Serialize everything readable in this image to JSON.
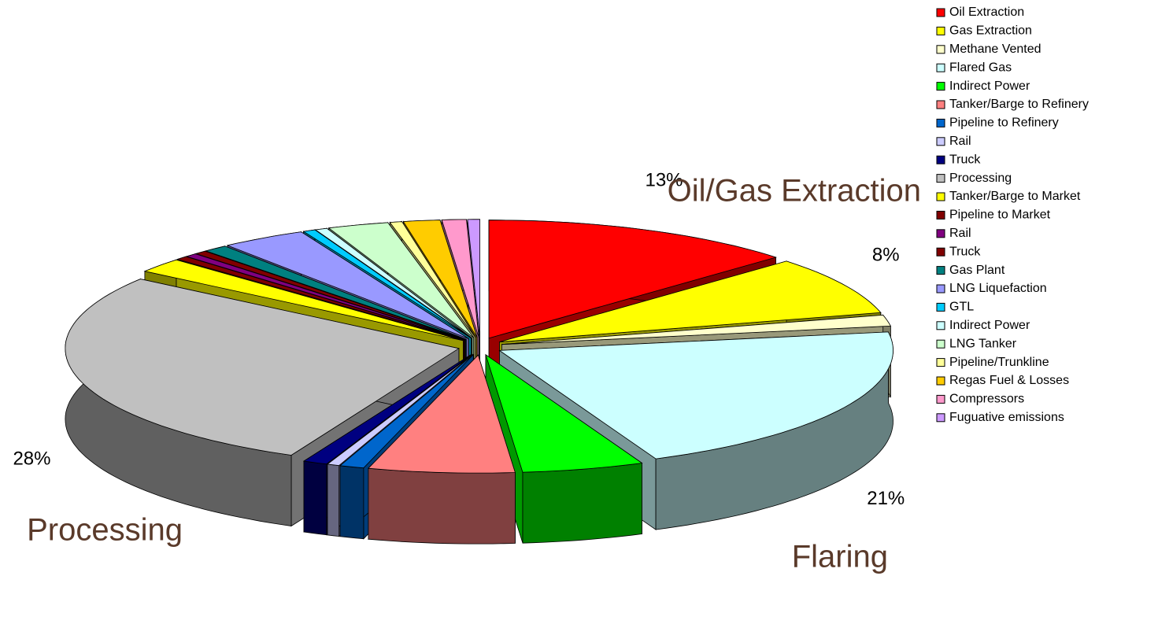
{
  "chart_data": {
    "type": "pie",
    "categories": [
      "Oil Extraction",
      "Gas Extraction",
      "Methane Vented",
      "Flared Gas",
      "Indirect Power",
      "Tanker/Barge to Refinery",
      "Pipeline to Refinery",
      "Rail",
      "Truck",
      "Processing",
      "Tanker/Barge to Market",
      "Pipeline to Market",
      "Rail",
      "Truck",
      "Gas Plant",
      "LNG Liquefaction",
      "GTL",
      "Indirect Power",
      "LNG Tanker",
      "Pipeline/Trunkline",
      "Regas Fuel & Losses",
      "Compressors",
      "Fuguative emissions"
    ],
    "values": [
      13,
      8,
      1.5,
      21,
      5,
      6,
      1,
      0.5,
      1,
      28,
      2,
      0.5,
      0.5,
      0.5,
      1,
      3.5,
      0.5,
      0.5,
      2.5,
      0.5,
      1.5,
      1,
      0.5
    ],
    "value_labels": [
      "13%",
      "8%",
      null,
      "21%",
      null,
      null,
      null,
      null,
      null,
      "28%",
      null,
      null,
      null,
      null,
      null,
      null,
      null,
      null,
      null,
      null,
      null,
      null,
      null
    ],
    "colors": [
      "#ff0000",
      "#ffff00",
      "#ffffcc",
      "#ccffff",
      "#00ff00",
      "#ff8080",
      "#0066cc",
      "#ccccff",
      "#000080",
      "#c0c0c0",
      "#ffff00",
      "#800000",
      "#800080",
      "#800000",
      "#008080",
      "#9999ff",
      "#00ccff",
      "#ccffff",
      "#ccffcc",
      "#ffff99",
      "#ffcc00",
      "#ff99cc",
      "#cc99ff"
    ],
    "annotations": [
      "Oil/Gas Extraction",
      "Processing",
      "Flaring"
    ],
    "legend": "right"
  }
}
